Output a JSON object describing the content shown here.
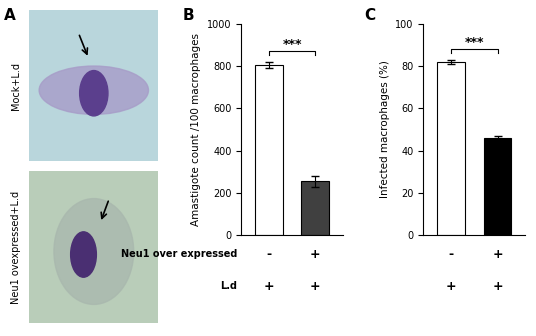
{
  "images": {
    "panel": "A",
    "items": [
      {
        "label": "Mock+L.d"
      },
      {
        "label": "Neu1 ovexpressed+L.d"
      }
    ]
  },
  "chart_data": [
    {
      "type": "bar",
      "panel": "B",
      "ylabel": "Amastigote count /100 macrophages",
      "values": [
        805,
        255
      ],
      "errors": [
        15,
        25
      ],
      "colors": [
        "#ffffff",
        "#404040"
      ],
      "ylim": [
        0,
        1000
      ],
      "yticks": [
        0,
        200,
        400,
        600,
        800,
        1000
      ],
      "tick_labels": "y",
      "significance": "***",
      "condition_rows": [
        {
          "label": "Neu1 over expressed",
          "marks": [
            "-",
            "+"
          ]
        },
        {
          "label": "L.d",
          "marks": [
            "+",
            "+"
          ]
        }
      ]
    },
    {
      "type": "bar",
      "panel": "C",
      "ylabel": "Infected macrophages (%)",
      "values": [
        82,
        46
      ],
      "errors": [
        1,
        1
      ],
      "colors": [
        "#ffffff",
        "#000000"
      ],
      "ylim": [
        0,
        100
      ],
      "yticks": [
        0,
        20,
        40,
        60,
        80,
        100
      ],
      "tick_labels": "y",
      "significance": "***",
      "condition_rows": [
        {
          "marks": [
            "-",
            "+"
          ]
        },
        {
          "marks": [
            "+",
            "+"
          ]
        }
      ]
    }
  ]
}
